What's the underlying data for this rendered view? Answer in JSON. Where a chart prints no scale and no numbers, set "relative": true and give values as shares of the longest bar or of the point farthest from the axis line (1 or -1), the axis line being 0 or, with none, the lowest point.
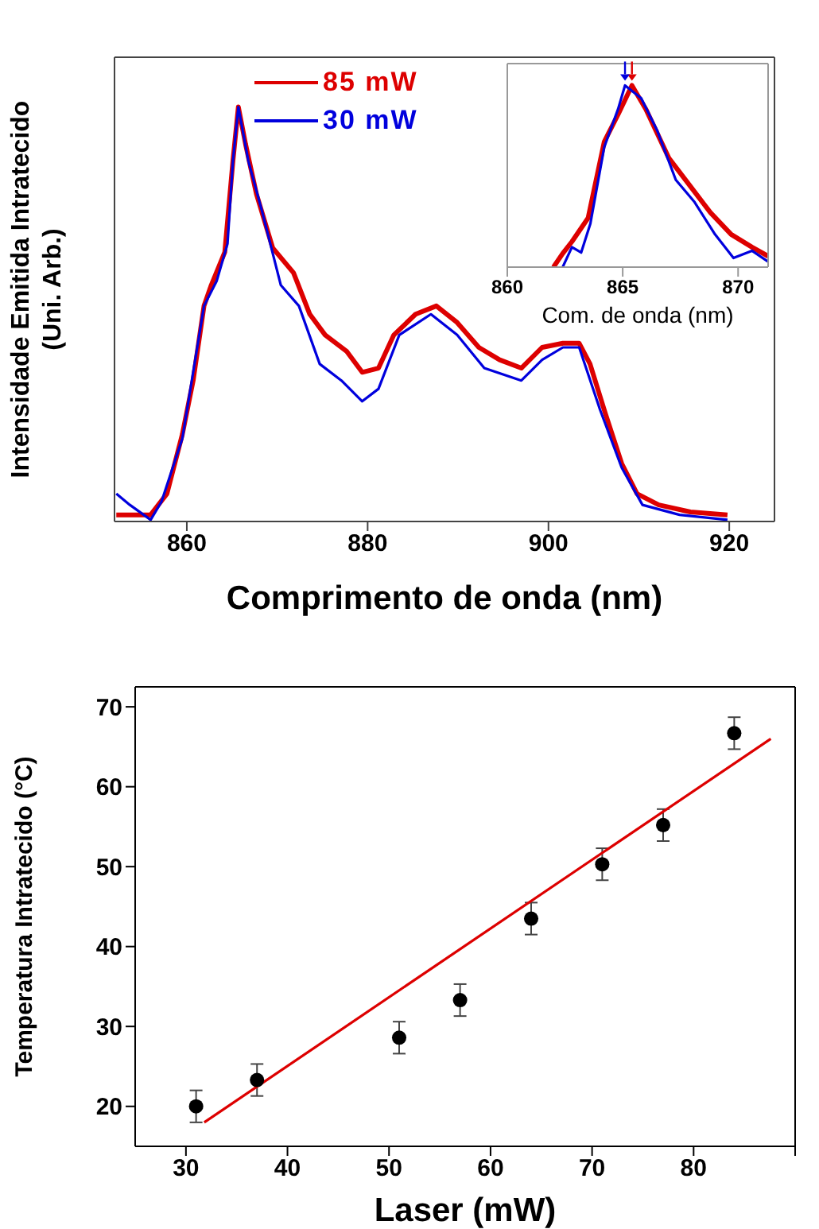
{
  "chart_data": [
    {
      "type": "line",
      "relative": true,
      "xlabel": "Comprimento de onda (nm)",
      "ylabel": "Intensidade Emitida Intratecido (Uni. Arb.)",
      "xlim": [
        852,
        925
      ],
      "xticks": [
        860,
        880,
        900,
        920
      ],
      "tick_labels": "x",
      "legend": "top left",
      "line_style": "solid",
      "series": [
        {
          "name": "85 mW",
          "color": "#dd0000",
          "x": [
            852.2,
            856,
            857.8,
            859.5,
            860.7,
            861.9,
            862.7,
            864.2,
            865.1,
            865.7,
            866.5,
            867.7,
            869.5,
            871.8,
            873.6,
            875.3,
            877.7,
            879.4,
            881.2,
            882.9,
            885.3,
            887.6,
            889.9,
            892.3,
            894.6,
            897,
            899.3,
            901.6,
            903.4,
            904.6,
            906.3,
            908.1,
            909.8,
            912.2,
            915.7,
            919.8
          ],
          "values": [
            0.016,
            0.016,
            0.067,
            0.21,
            0.34,
            0.52,
            0.57,
            0.65,
            0.87,
            1.0,
            0.91,
            0.79,
            0.66,
            0.6,
            0.5,
            0.45,
            0.41,
            0.36,
            0.37,
            0.45,
            0.5,
            0.52,
            0.48,
            0.42,
            0.39,
            0.37,
            0.42,
            0.43,
            0.43,
            0.38,
            0.26,
            0.14,
            0.067,
            0.04,
            0.023,
            0.016
          ]
        },
        {
          "name": "30 mW",
          "color": "#0000dd",
          "x": [
            852.2,
            853.7,
            856,
            857.2,
            859.5,
            861.9,
            863.3,
            864.5,
            865.1,
            865.7,
            866.8,
            868.3,
            870.4,
            872.4,
            874.7,
            877.1,
            879.4,
            881.2,
            883.5,
            887,
            889.9,
            892.9,
            897,
            899.3,
            901.6,
            903.4,
            905.7,
            908.1,
            910.4,
            914.5,
            919.8
          ],
          "values": [
            0.067,
            0.04,
            0.004,
            0.048,
            0.2,
            0.52,
            0.58,
            0.67,
            0.87,
            1.0,
            0.87,
            0.75,
            0.57,
            0.52,
            0.38,
            0.34,
            0.29,
            0.32,
            0.45,
            0.5,
            0.45,
            0.37,
            0.34,
            0.39,
            0.42,
            0.42,
            0.27,
            0.13,
            0.04,
            0.016,
            0.004
          ]
        }
      ]
    },
    {
      "type": "line",
      "relative": true,
      "xlabel": "Com. de onda (nm)",
      "xlim": [
        860,
        871.3
      ],
      "xticks": [
        860,
        865,
        870
      ],
      "tick_labels": "x",
      "line_style": "solid",
      "series": [
        {
          "color": "#dd0000",
          "x": [
            862,
            862.4,
            862.8,
            863.5,
            864.2,
            864.8,
            865.4,
            866,
            867,
            867.9,
            868.8,
            869.7,
            870.6,
            871.3
          ],
          "values": [
            0,
            0.075,
            0.14,
            0.27,
            0.69,
            0.84,
            1.0,
            0.87,
            0.6,
            0.45,
            0.3,
            0.18,
            0.11,
            0.06
          ]
        },
        {
          "color": "#0000dd",
          "x": [
            862.4,
            862.8,
            863.2,
            863.6,
            864.2,
            864.8,
            865.1,
            865.8,
            866.5,
            867.3,
            868.1,
            869,
            869.8,
            870.6,
            871.3
          ],
          "values": [
            0,
            0.11,
            0.08,
            0.24,
            0.66,
            0.87,
            1.0,
            0.93,
            0.75,
            0.48,
            0.36,
            0.18,
            0.05,
            0.09,
            0.03
          ]
        }
      ]
    },
    {
      "type": "scatter",
      "xlabel": "Laser (mW)",
      "ylabel": "Temperatura Intratecido (°C)",
      "xlim": [
        25,
        90
      ],
      "xticks": [
        30,
        40,
        50,
        60,
        70,
        80,
        {
          "value": 90,
          "label": null
        }
      ],
      "ylim": [
        15,
        72.5
      ],
      "yticks": [
        20,
        30,
        40,
        50,
        60,
        70
      ],
      "series": [
        {
          "type": "scatter",
          "marker": "circle",
          "color": "#000000",
          "x": [
            31,
            37,
            51,
            57,
            64,
            71,
            77,
            84
          ],
          "values": [
            20,
            23.3,
            28.6,
            33.3,
            43.5,
            50.3,
            55.2,
            66.7
          ],
          "errors": [
            2,
            2,
            2,
            2,
            2,
            2,
            2,
            2
          ]
        },
        {
          "type": "line",
          "color": "#dd0000",
          "x": [
            31.8,
            87.6
          ],
          "values": [
            18,
            66
          ]
        }
      ]
    }
  ]
}
